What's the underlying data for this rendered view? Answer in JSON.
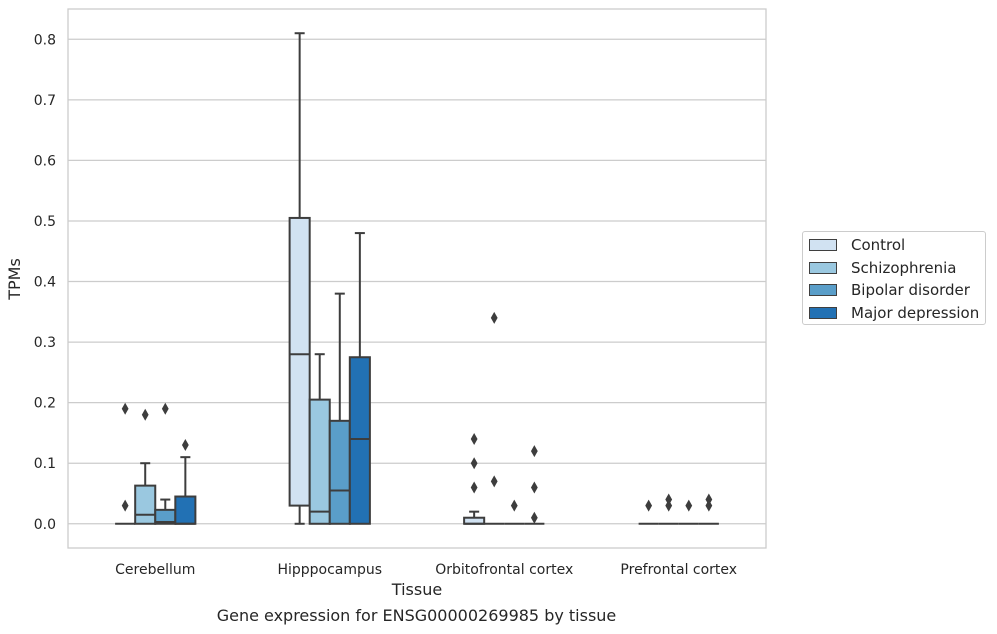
{
  "chart_data": {
    "type": "box",
    "caption": "Gene expression for ENSG00000269985 by tissue",
    "xlabel": "Tissue",
    "ylabel": "TPMs",
    "ylim": [
      -0.04,
      0.85
    ],
    "yticks": [
      0.0,
      0.1,
      0.2,
      0.3,
      0.4,
      0.5,
      0.6,
      0.7,
      0.8
    ],
    "ytick_labels": [
      "0.0",
      "0.1",
      "0.2",
      "0.3",
      "0.4",
      "0.5",
      "0.6",
      "0.7",
      "0.8"
    ],
    "categories": [
      "Cerebellum",
      "Hipppocampus",
      "Orbitofrontal cortex",
      "Prefrontal cortex"
    ],
    "grid": "horizontal",
    "legend_position": "right",
    "series": [
      {
        "name": "Control",
        "color": "#d1e2f2",
        "boxes": [
          {
            "q1": 0,
            "median": 0,
            "q3": 0,
            "whisker_low": 0,
            "whisker_high": 0,
            "outliers": [
              0.19,
              0.03
            ]
          },
          {
            "q1": 0.03,
            "median": 0.28,
            "q3": 0.505,
            "whisker_low": 0,
            "whisker_high": 0.81,
            "outliers": []
          },
          {
            "q1": 0,
            "median": 0,
            "q3": 0.01,
            "whisker_low": 0,
            "whisker_high": 0.02,
            "outliers": [
              0.14,
              0.1,
              0.06
            ]
          },
          {
            "q1": 0,
            "median": 0,
            "q3": 0,
            "whisker_low": 0,
            "whisker_high": 0,
            "outliers": [
              0.03
            ]
          }
        ]
      },
      {
        "name": "Schizophrenia",
        "color": "#9ac8e0",
        "boxes": [
          {
            "q1": 0,
            "median": 0.015,
            "q3": 0.063,
            "whisker_low": 0,
            "whisker_high": 0.1,
            "outliers": [
              0.18
            ]
          },
          {
            "q1": 0,
            "median": 0.02,
            "q3": 0.205,
            "whisker_low": 0,
            "whisker_high": 0.28,
            "outliers": []
          },
          {
            "q1": 0,
            "median": 0,
            "q3": 0,
            "whisker_low": 0,
            "whisker_high": 0,
            "outliers": [
              0.34,
              0.07
            ]
          },
          {
            "q1": 0,
            "median": 0,
            "q3": 0,
            "whisker_low": 0,
            "whisker_high": 0,
            "outliers": [
              0.04,
              0.03
            ]
          }
        ]
      },
      {
        "name": "Bipolar disorder",
        "color": "#5a9ec9",
        "boxes": [
          {
            "q1": 0,
            "median": 0.003,
            "q3": 0.023,
            "whisker_low": 0,
            "whisker_high": 0.04,
            "outliers": [
              0.19
            ]
          },
          {
            "q1": 0,
            "median": 0.055,
            "q3": 0.17,
            "whisker_low": 0,
            "whisker_high": 0.38,
            "outliers": []
          },
          {
            "q1": 0,
            "median": 0,
            "q3": 0,
            "whisker_low": 0,
            "whisker_high": 0,
            "outliers": [
              0.03
            ]
          },
          {
            "q1": 0,
            "median": 0,
            "q3": 0,
            "whisker_low": 0,
            "whisker_high": 0,
            "outliers": [
              0.03
            ]
          }
        ]
      },
      {
        "name": "Major depression",
        "color": "#2271b4",
        "boxes": [
          {
            "q1": 0,
            "median": 0,
            "q3": 0.045,
            "whisker_low": 0,
            "whisker_high": 0.11,
            "outliers": [
              0.13
            ]
          },
          {
            "q1": 0,
            "median": 0.14,
            "q3": 0.275,
            "whisker_low": 0,
            "whisker_high": 0.48,
            "outliers": []
          },
          {
            "q1": 0,
            "median": 0,
            "q3": 0,
            "whisker_low": 0,
            "whisker_high": 0,
            "outliers": [
              0.12,
              0.06,
              0.01
            ]
          },
          {
            "q1": 0,
            "median": 0,
            "q3": 0,
            "whisker_low": 0,
            "whisker_high": 0,
            "outliers": [
              0.04,
              0.03
            ]
          }
        ]
      }
    ]
  }
}
